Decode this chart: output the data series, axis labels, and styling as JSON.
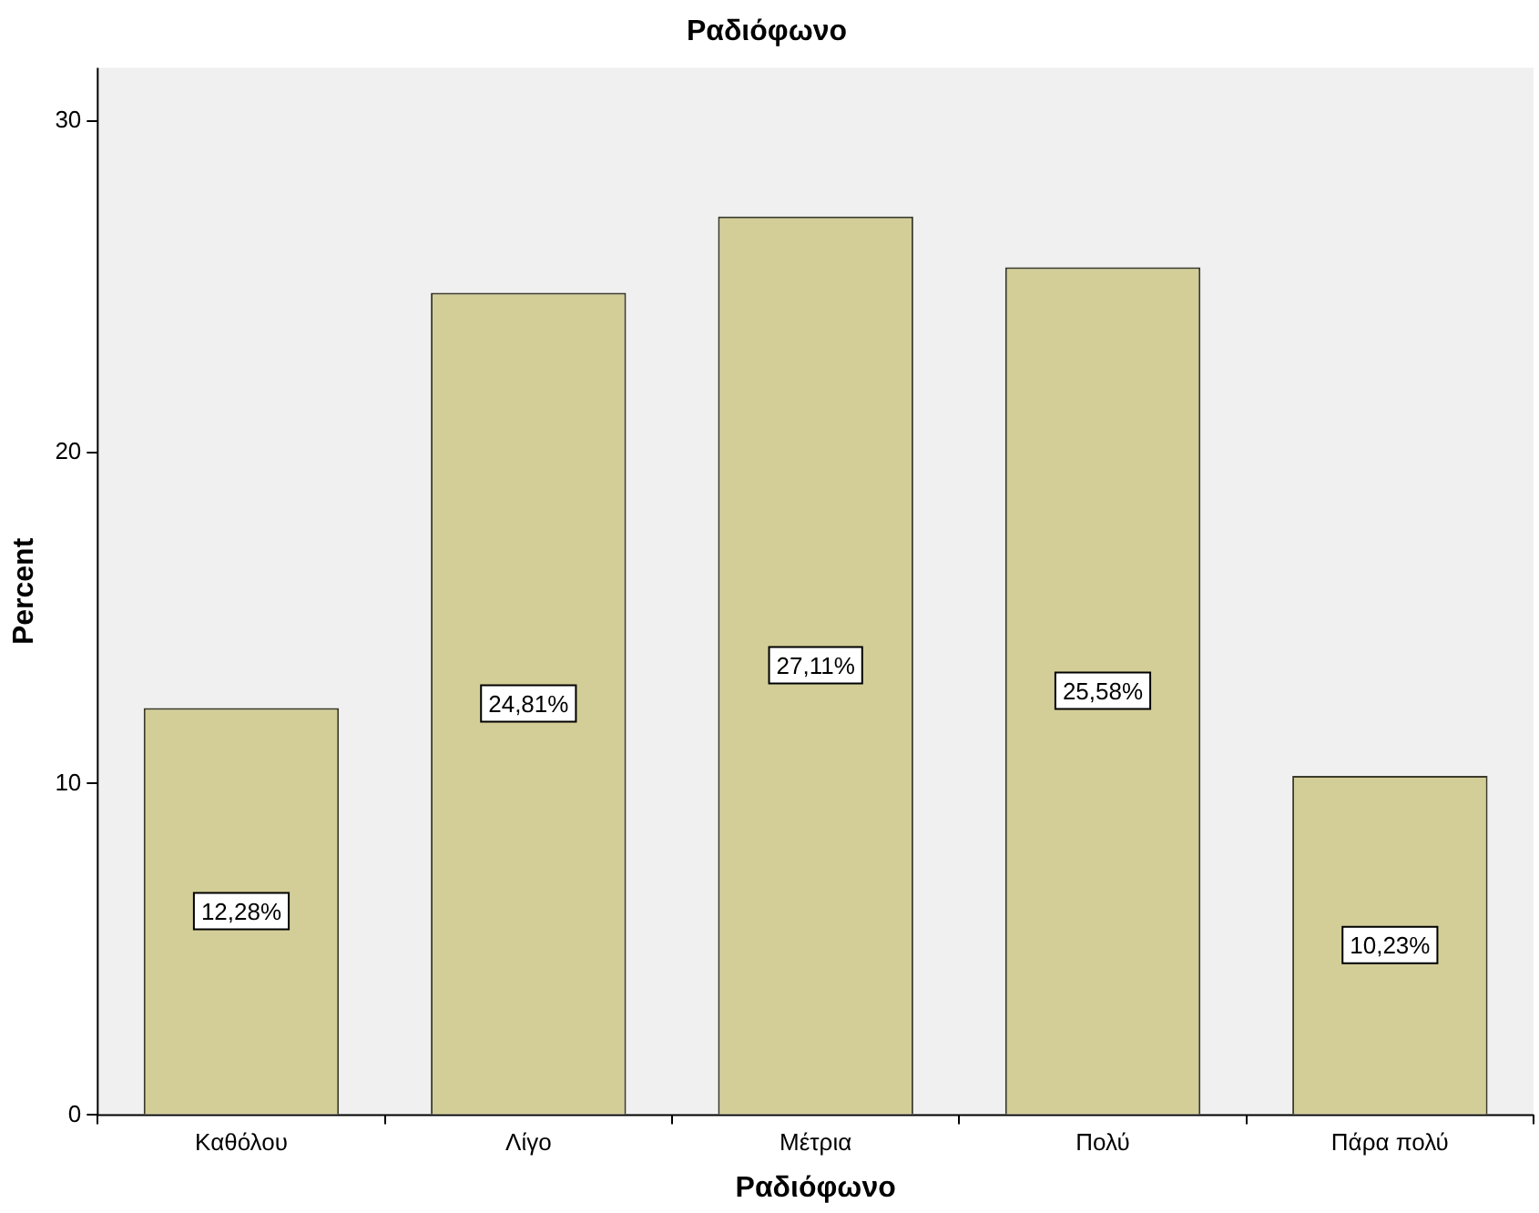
{
  "chart_data": {
    "type": "bar",
    "title": "Ραδιόφωνο",
    "xlabel": "Ραδιόφωνο",
    "ylabel": "Percent",
    "categories": [
      "Καθόλου",
      "Λίγο",
      "Μέτρια",
      "Πολύ",
      "Πάρα πολύ"
    ],
    "values": [
      12.28,
      24.81,
      27.11,
      25.58,
      10.23
    ],
    "value_labels": [
      "12,28%",
      "24,81%",
      "27,11%",
      "25,58%",
      "10,23%"
    ],
    "color": "#d3ce97",
    "ylim": [
      0,
      31.6
    ],
    "yticks": [
      0,
      10,
      20,
      30
    ],
    "grid": false,
    "legend": false
  }
}
